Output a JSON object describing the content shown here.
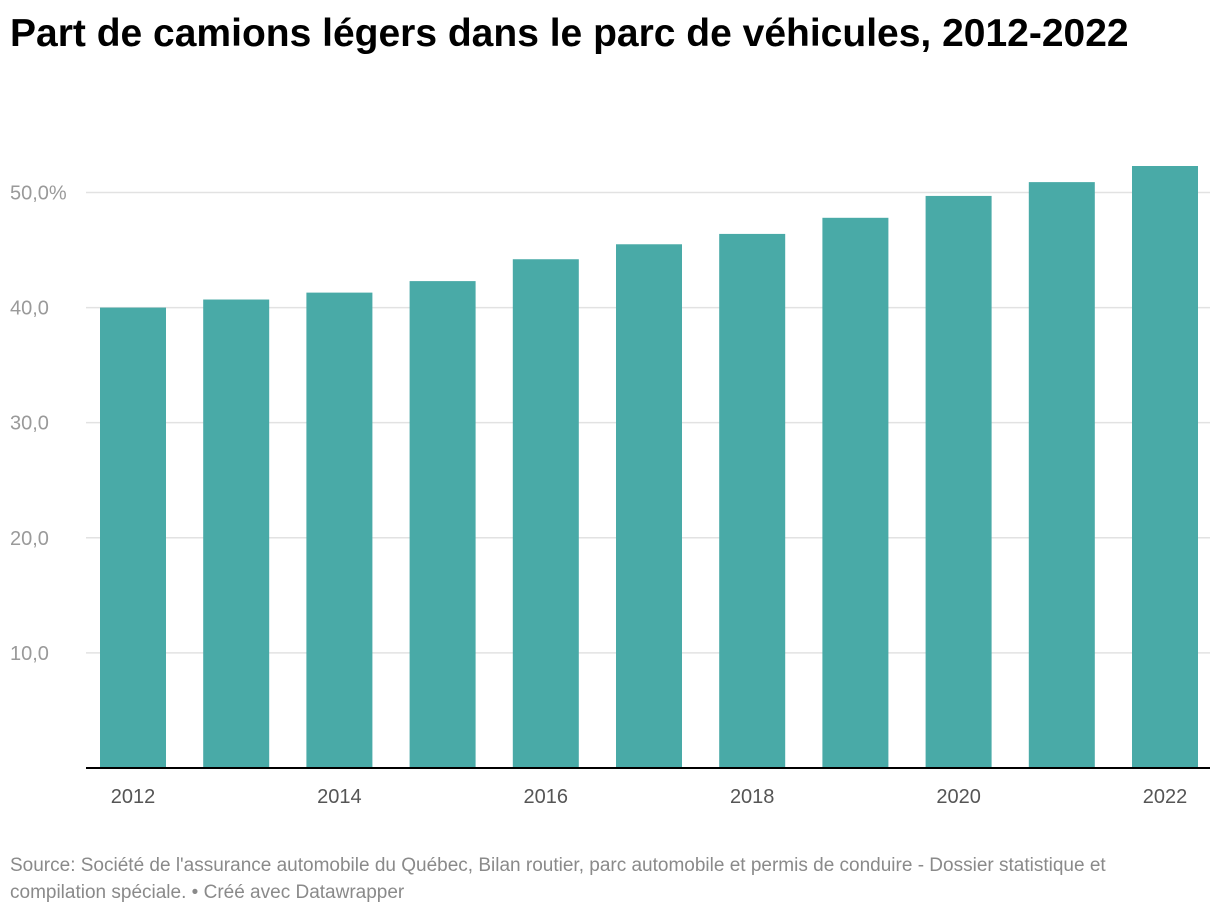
{
  "title": "Part de camions légers dans le parc de véhicules, 2012-2022",
  "footer": {
    "source": "Source: Société de l'assurance automobile du Québec, Bilan routier, parc automobile et permis de conduire - Dossier statistique et compilation spéciale.",
    "separator": " • ",
    "credit": "Créé avec Datawrapper"
  },
  "colors": {
    "bar": "#49aaa7",
    "grid": "#e2e2e2",
    "axis": "#000000"
  },
  "chart_data": {
    "type": "bar",
    "categories": [
      "2012",
      "2013",
      "2014",
      "2015",
      "2016",
      "2017",
      "2018",
      "2019",
      "2020",
      "2021",
      "2022"
    ],
    "values": [
      40.0,
      40.7,
      41.3,
      42.3,
      44.2,
      45.5,
      46.4,
      47.8,
      49.7,
      50.9,
      52.3
    ],
    "title": "Part de camions légers dans le parc de véhicules, 2012-2022",
    "xlabel": "",
    "ylabel": "",
    "ylim": [
      0,
      52.3
    ],
    "yticks": [
      10,
      20,
      30,
      40,
      50
    ],
    "ytick_labels": [
      "10,0",
      "20,0",
      "30,0",
      "40,0",
      "50,0%"
    ],
    "xtick_labels": [
      "2012",
      "2014",
      "2016",
      "2018",
      "2020",
      "2022"
    ],
    "grid": true,
    "legend": "none"
  }
}
